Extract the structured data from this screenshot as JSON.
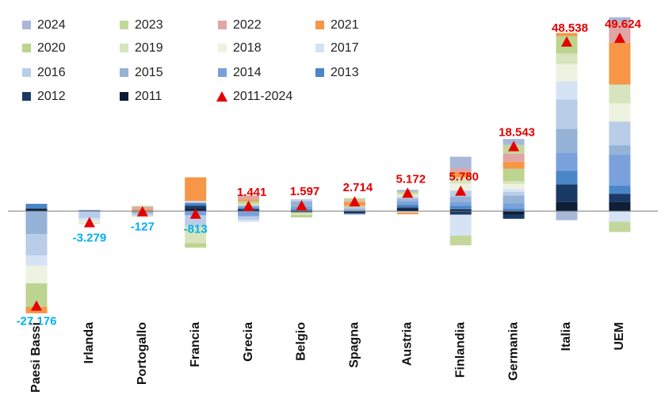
{
  "chart_data": {
    "type": "bar",
    "stacked": true,
    "categories": [
      "Paesi Bassi",
      "Irlanda",
      "Portogallo",
      "Francia",
      "Grecia",
      "Belgio",
      "Spagna",
      "Austria",
      "Finlandia",
      "Germania",
      "Italia",
      "UEM"
    ],
    "ylim": [
      -30000,
      56000
    ],
    "series": [
      {
        "name": "2024",
        "color": "#a9b8d8",
        "values": [
          0,
          0,
          0,
          0,
          0,
          0,
          0,
          500,
          3400,
          1700,
          -2600,
          1400
        ]
      },
      {
        "name": "2023",
        "color": "#c4d79b",
        "values": [
          0,
          0,
          300,
          -300,
          0,
          0,
          800,
          600,
          -2800,
          2500,
          0,
          -3000
        ]
      },
      {
        "name": "2022",
        "color": "#e0a5a5",
        "values": [
          0,
          0,
          700,
          0,
          1100,
          0,
          300,
          0,
          1000,
          2300,
          0,
          5900
        ]
      },
      {
        "name": "2021",
        "color": "#f79646",
        "values": [
          -1800,
          0,
          500,
          6800,
          500,
          0,
          1000,
          -500,
          1500,
          2000,
          900,
          12000
        ]
      },
      {
        "name": "2020",
        "color": "#bcd48f",
        "values": [
          -6800,
          0,
          0,
          -1000,
          700,
          -700,
          400,
          0,
          0,
          3600,
          5000,
          0
        ]
      },
      {
        "name": "2019",
        "color": "#d7e4bd",
        "values": [
          0,
          -300,
          -400,
          -5000,
          600,
          -800,
          0,
          500,
          1800,
          800,
          3000,
          5400
        ]
      },
      {
        "name": "2018",
        "color": "#eef2e0",
        "values": [
          -5000,
          -500,
          0,
          0,
          0,
          0,
          0,
          400,
          2000,
          1500,
          5000,
          5200
        ]
      },
      {
        "name": "2017",
        "color": "#d6e3f4",
        "values": [
          -3000,
          -800,
          0,
          500,
          -600,
          0,
          0,
          -400,
          -6000,
          800,
          5200,
          -3000
        ]
      },
      {
        "name": "2016",
        "color": "#b9cde8",
        "values": [
          -6100,
          -2000,
          -500,
          -3000,
          -1000,
          600,
          500,
          600,
          1700,
          1000,
          8400,
          6800
        ]
      },
      {
        "name": "2015",
        "color": "#95b3d7",
        "values": [
          -6600,
          0,
          -700,
          0,
          500,
          1500,
          700,
          700,
          1500,
          2300,
          6800,
          2700
        ]
      },
      {
        "name": "2014",
        "color": "#7aa1dc",
        "values": [
          0,
          0,
          0,
          -1200,
          -1500,
          800,
          -300,
          900,
          1200,
          1500,
          5200,
          8900
        ]
      },
      {
        "name": "2013",
        "color": "#4a86c8",
        "values": [
          1400,
          300,
          0,
          800,
          600,
          500,
          0,
          800,
          1000,
          700,
          3900,
          2300
        ]
      },
      {
        "name": "2012",
        "color": "#1a3a66",
        "values": [
          0,
          0,
          0,
          900,
          0,
          0,
          -400,
          500,
          -1000,
          -1200,
          5000,
          2300
        ]
      },
      {
        "name": "2011",
        "color": "#0e1e36",
        "values": [
          700,
          0,
          0,
          700,
          500,
          -300,
          -300,
          600,
          500,
          -1000,
          2700,
          2700
        ]
      },
      {
        "name": "2011-2024",
        "type": "marker",
        "color": "#e30000",
        "negative_label_color": "#00b0f0",
        "values": [
          -27176,
          -3279,
          -127,
          -813,
          1441,
          1597,
          2714,
          5172,
          5780,
          18543,
          48538,
          49624
        ],
        "value_labels": [
          "-27.176",
          "-3.279",
          "-127",
          "-813",
          "1.441",
          "1.597",
          "2.714",
          "5.172",
          "5.780",
          "18.543",
          "48.538",
          "49.624"
        ]
      }
    ]
  }
}
